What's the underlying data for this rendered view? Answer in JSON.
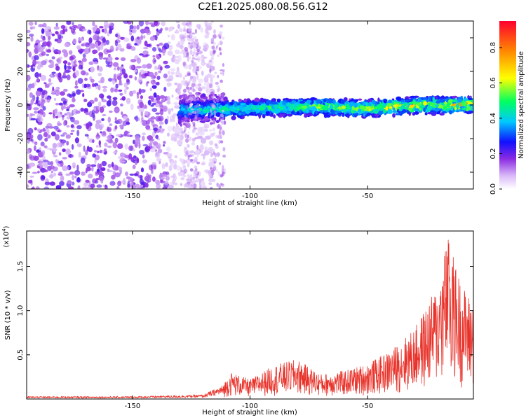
{
  "title": "C2E1.2025.080.08.56.G12",
  "chart_data": [
    {
      "type": "heatmap",
      "xlabel": "Height of straight line (km)",
      "ylabel": "Frequency (Hz)",
      "xlim": [
        -195,
        -5
      ],
      "ylim": [
        -50,
        50
      ],
      "x_ticks": [
        -150,
        -100,
        -50
      ],
      "x_tick_labels": [
        "-150",
        "-100",
        "-50"
      ],
      "y_ticks": [
        -40,
        -20,
        0,
        20,
        40
      ],
      "y_tick_labels": [
        "-40",
        "-20",
        "0",
        "20",
        "40"
      ],
      "colorbar": {
        "label": "Normalized spectral amplitude",
        "range": [
          0,
          0.95
        ],
        "ticks": [
          0.0,
          0.2,
          0.4,
          0.6,
          0.8
        ],
        "tick_labels": [
          "0.0",
          "0.2",
          "0.4",
          "0.6",
          "0.8"
        ],
        "colormap": "rainbow-white-low"
      },
      "ridge": {
        "description_points": [
          [
            -128,
            -3
          ],
          [
            -100,
            -2
          ],
          [
            -75,
            -1
          ],
          [
            -50,
            -2
          ],
          [
            -25,
            0
          ],
          [
            -5,
            0
          ]
        ]
      },
      "noise_region_x": [
        -195,
        -115
      ]
    },
    {
      "type": "line",
      "xlabel": "Height of straight line (km)",
      "ylabel": "SNR (10 * v/v)",
      "y_multiplier_label": "(x10",
      "y_multiplier_exp": "4",
      "xlim": [
        -195,
        -5
      ],
      "ylim": [
        0,
        1.9
      ],
      "x_ticks": [
        -150,
        -100,
        -50
      ],
      "x_tick_labels": [
        "-150",
        "-100",
        "-50"
      ],
      "y_ticks": [
        0.5,
        1.0,
        1.5
      ],
      "y_tick_labels": [
        "0.5",
        "1.0",
        "1.5"
      ],
      "series": [
        {
          "color": "#e8332b",
          "envelope_x": [
            -195,
            -150,
            -120,
            -112,
            -108,
            -100,
            -90,
            -80,
            -70,
            -60,
            -50,
            -40,
            -30,
            -20,
            -16,
            -10,
            -5
          ],
          "envelope_y": [
            0.03,
            0.03,
            0.05,
            0.15,
            0.3,
            0.22,
            0.38,
            0.45,
            0.28,
            0.32,
            0.4,
            0.55,
            0.8,
            1.3,
            1.85,
            1.3,
            1.1
          ]
        }
      ]
    }
  ],
  "colors": {
    "line": "#e8332b",
    "axis": "#000000"
  }
}
